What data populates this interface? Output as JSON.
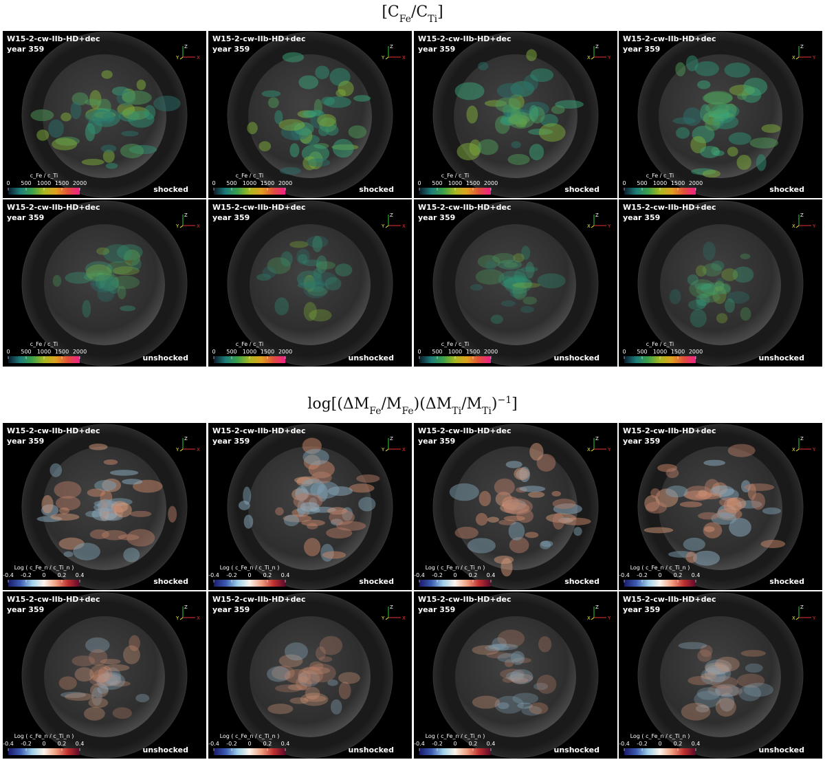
{
  "sections": [
    {
      "title": [
        {
          "text": "[C"
        },
        {
          "text": "Fe",
          "sub": true
        },
        {
          "text": "/C"
        },
        {
          "text": "Ti",
          "sub": true
        },
        {
          "text": "]"
        }
      ],
      "colorbar": {
        "title": "c_Fe / c_Ti",
        "ticks": [
          0,
          500,
          1000,
          1500,
          2000
        ],
        "colors": [
          "#0b1a2a",
          "#1d7d7a",
          "#3aa04a",
          "#a8b820",
          "#e0a020",
          "#e0503a",
          "#f0208a"
        ]
      },
      "blob_colors": [
        "#2e8f74",
        "#3aa37a",
        "#7fae3a",
        "#2b6f6a",
        "#4e9a5a"
      ],
      "rows": [
        {
          "state": "shocked",
          "panels": [
            {
              "model": "W15-2-cw-IIb-HD+dec",
              "year": "year 359",
              "axes": [
                "Z",
                "Y",
                "X"
              ]
            },
            {
              "model": "W15-2-cw-IIb-HD+dec",
              "year": "year 359",
              "axes": [
                "Z",
                "Y",
                "X"
              ]
            },
            {
              "model": "W15-2-cw-IIb-HD+dec",
              "year": "year 359",
              "axes": [
                "Z",
                "X",
                "Y"
              ]
            },
            {
              "model": "W15-2-cw-IIb-HD+dec",
              "year": "year 359",
              "axes": [
                "Z",
                "X",
                "Y"
              ]
            }
          ]
        },
        {
          "state": "unshocked",
          "panels": [
            {
              "model": "W15-2-cw-IIb-HD+dec",
              "year": "year 359",
              "axes": [
                "Z",
                "Y",
                "X"
              ]
            },
            {
              "model": "W15-2-cw-IIb-HD+dec",
              "year": "year 359",
              "axes": [
                "Z",
                "Y",
                "X"
              ]
            },
            {
              "model": "W15-2-cw-IIb-HD+dec",
              "year": "year 359",
              "axes": [
                "Z",
                "X",
                "Y"
              ]
            },
            {
              "model": "W15-2-cw-IIb-HD+dec",
              "year": "year 359",
              "axes": [
                "Z",
                "X",
                "Y"
              ]
            }
          ]
        }
      ]
    },
    {
      "title": [
        {
          "text": "log[(ΔM"
        },
        {
          "text": "Fe",
          "sub": true
        },
        {
          "text": "/M"
        },
        {
          "text": "Fe",
          "sub": true
        },
        {
          "text": ")(ΔM"
        },
        {
          "text": "Ti",
          "sub": true
        },
        {
          "text": "/M"
        },
        {
          "text": "Ti",
          "sub": true
        },
        {
          "text": ")"
        },
        {
          "text": "−1",
          "sup": true
        },
        {
          "text": "]"
        }
      ],
      "colorbar": {
        "title": "Log ( c_Fe_n / c_Ti_n )",
        "ticks": [
          -0.4,
          -0.2,
          0,
          0.2,
          0.4
        ],
        "colors": [
          "#1a1a6a",
          "#3a5ab0",
          "#9fd0e8",
          "#fbf3ea",
          "#f0a080",
          "#c03030",
          "#5a0a2a"
        ]
      },
      "blob_colors": [
        "#c9876a",
        "#8fb0c4",
        "#b27a66",
        "#7e9db0",
        "#d69a7c"
      ],
      "rows": [
        {
          "state": "shocked",
          "panels": [
            {
              "model": "W15-2-cw-IIb-HD+dec",
              "year": "year 359",
              "axes": [
                "Z",
                "Y",
                "X"
              ]
            },
            {
              "model": "W15-2-cw-IIb-HD+dec",
              "year": "year 359",
              "axes": [
                "Z",
                "Y",
                "X"
              ]
            },
            {
              "model": "W15-2-cw-IIb-HD+dec",
              "year": "year 359",
              "axes": [
                "Z",
                "X",
                "Y"
              ]
            },
            {
              "model": "W15-2-cw-IIb-HD+dec",
              "year": "year 359",
              "axes": [
                "Z",
                "X",
                "Y"
              ]
            }
          ]
        },
        {
          "state": "unshocked",
          "panels": [
            {
              "model": "W15-2-cw-IIb-HD+dec",
              "year": "year 359",
              "axes": [
                "Z",
                "Y",
                "X"
              ]
            },
            {
              "model": "W15-2-cw-IIb-HD+dec",
              "year": "year 359",
              "axes": [
                "Z",
                "Y",
                "X"
              ]
            },
            {
              "model": "W15-2-cw-IIb-HD+dec",
              "year": "year 359",
              "axes": [
                "Z",
                "X",
                "Y"
              ]
            },
            {
              "model": "W15-2-cw-IIb-HD+dec",
              "year": "year 359",
              "axes": [
                "Z",
                "X",
                "Y"
              ]
            }
          ]
        }
      ]
    }
  ]
}
